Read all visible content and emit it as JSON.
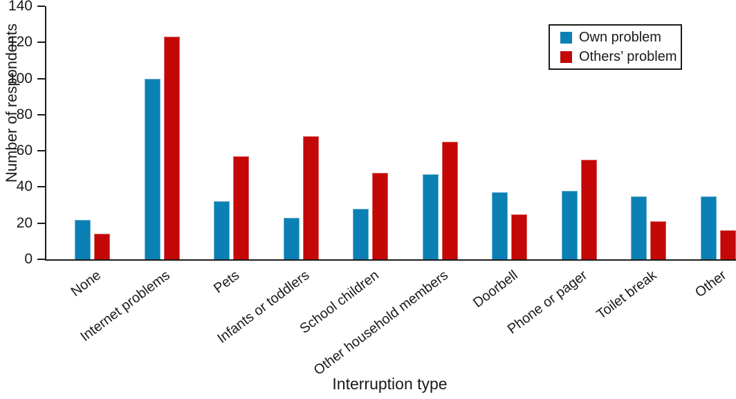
{
  "chart_data": {
    "type": "bar",
    "title": "",
    "xlabel": "Interruption type",
    "ylabel": "Number of respondents",
    "categories": [
      "None",
      "Internet problems",
      "Pets",
      "Infants or toddlers",
      "School children",
      "Other household members",
      "Doorbell",
      "Phone or pager",
      "Toilet break",
      "Other"
    ],
    "series": [
      {
        "name": "Own problem",
        "color": "#0b80b4",
        "values": [
          22,
          100,
          32,
          23,
          28,
          47,
          37,
          38,
          35,
          35
        ]
      },
      {
        "name": "Others’ problem",
        "color": "#c40707",
        "values": [
          14,
          123,
          57,
          68,
          48,
          65,
          25,
          55,
          21,
          16
        ]
      }
    ],
    "ylim": [
      0,
      140
    ],
    "ytick_step": 20,
    "grid": false,
    "legend_position": "top-right",
    "axis_color": "#1a1a1a",
    "background_color": "#ffffff"
  }
}
